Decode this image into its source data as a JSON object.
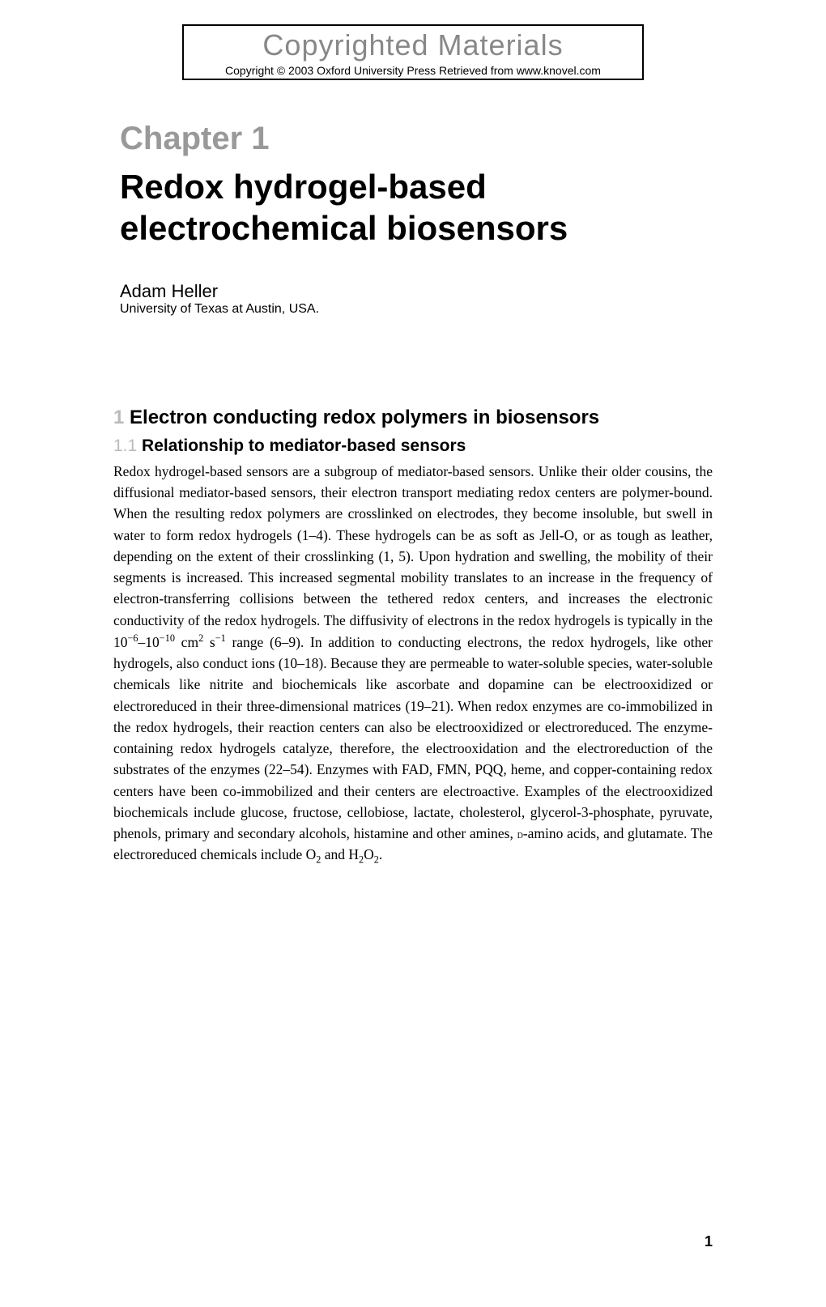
{
  "copyright": {
    "title": "Copyrighted Materials",
    "notice": "Copyright © 2003 Oxford University Press Retrieved from www.knovel.com"
  },
  "chapter": {
    "label": "Chapter 1",
    "title": "Redox hydrogel-based electrochemical biosensors"
  },
  "author": {
    "name": "Adam Heller",
    "affiliation": "University of Texas at Austin, USA."
  },
  "section": {
    "number": "1",
    "title": "Electron conducting redox polymers in biosensors"
  },
  "subsection": {
    "number": "1.1",
    "title": "Relationship to mediator-based sensors"
  },
  "body": {
    "p1a": "Redox hydrogel-based sensors are a subgroup of mediator-based sensors. Unlike their older cousins, the diffusional mediator-based sensors, their electron transport mediating redox centers are polymer-bound. When the resulting redox polymers are crosslinked on electrodes, they become insoluble, but swell in water to form redox hydrogels (1–4). These hydrogels can be as soft as Jell-O, or as tough as leather, depending on the extent of their crosslinking (1, 5). Upon hydration and swelling, the mobility of their segments is increased. This increased segmental mobility translates to an increase in the frequency of electron-transferring collisions between the tethered redox centers, and increases the electronic conductivity of the redox hydrogels. The diffusivity of electrons in the redox hydrogels is typically in the 10",
    "p1b": "–10",
    "p1c": " cm",
    "p1d": " s",
    "p1e": " range (6–9). In addition to conducting electrons, the redox hydrogels, like other hydrogels, also conduct ions (10–18). Because they are permeable to water-soluble species, water-soluble chemicals like nitrite and biochemicals like ascorbate and dopamine can be electrooxidized or electroreduced in their three-dimensional matrices (19–21). When redox enzymes are co-immobilized in the redox hydrogels, their reaction centers can also be electrooxidized or electroreduced. The enzyme-containing redox hydrogels catalyze, therefore, the electrooxidation and the electroreduction of the substrates of the enzymes (22–54). Enzymes with FAD, FMN, PQQ, heme, and copper-containing redox centers have been co-immobilized and their centers are electroactive. Examples of the electrooxidized biochemicals include glucose, fructose, cellobiose, lactate, cholesterol, glycerol-3-phosphate, pyruvate, phenols, primary and secondary alcohols, histamine and other amines, ",
    "p1f": "-amino acids, and glutamate. The electroreduced chemicals include O",
    "p1g": " and H",
    "p1h": "O",
    "p1i": ".",
    "exp_n6": "−6",
    "exp_n10": "−10",
    "exp_2": "2",
    "exp_n1": "−1",
    "sub_2": "2",
    "smallcap_d": "d"
  },
  "page_number": "1",
  "colors": {
    "gray_heading": "#888888",
    "gray_label": "#999999",
    "gray_number": "#bbbbbb",
    "text": "#000000",
    "background": "#ffffff"
  },
  "typography": {
    "copyright_title_size": 36,
    "chapter_label_size": 40,
    "chapter_title_size": 42,
    "author_name_size": 22,
    "affiliation_size": 16,
    "section_heading_size": 24,
    "subsection_heading_size": 21,
    "body_size": 17.5
  }
}
